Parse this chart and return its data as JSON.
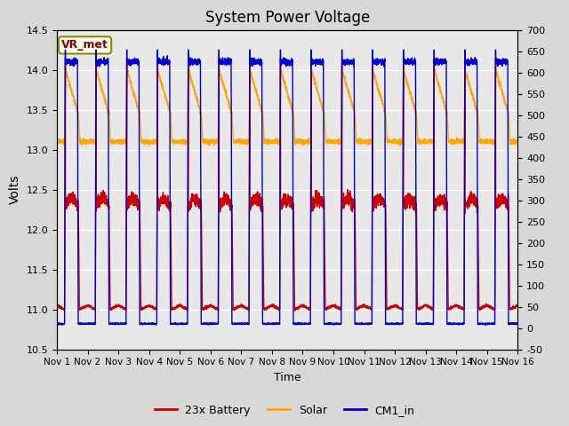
{
  "title": "System Power Voltage",
  "xlabel": "Time",
  "ylabel": "Volts",
  "ylim_left": [
    10.5,
    14.5
  ],
  "ylim_right": [
    -50,
    700
  ],
  "yticks_left": [
    10.5,
    11.0,
    11.5,
    12.0,
    12.5,
    13.0,
    13.5,
    14.0,
    14.5
  ],
  "yticks_right": [
    -50,
    0,
    50,
    100,
    150,
    200,
    250,
    300,
    350,
    400,
    450,
    500,
    550,
    600,
    650,
    700
  ],
  "fig_bg_color": "#d8d8d8",
  "plot_bg_color": "#e8e8e8",
  "annotation_text": "VR_met",
  "annotation_color": "#8B0000",
  "annotation_bg": "#fffff0",
  "annotation_border": "#8B8B00",
  "series": {
    "battery": {
      "label": "23x Battery",
      "color": "#cc0000",
      "lw": 1.0
    },
    "solar": {
      "label": "Solar",
      "color": "#ffa500",
      "lw": 1.0
    },
    "cm1": {
      "label": "CM1_in",
      "color": "#0000cc",
      "lw": 1.0
    }
  },
  "xticklabels": [
    "Nov 1",
    "Nov 2",
    "Nov 3",
    "Nov 4",
    "Nov 5",
    "Nov 6",
    "Nov 7",
    "Nov 8",
    "Nov 9",
    "Nov 10",
    "Nov 11",
    "Nov 12",
    "Nov 13",
    "Nov 14",
    "Nov 15",
    "Nov 16"
  ],
  "num_days": 15,
  "pts_per_day": 288
}
